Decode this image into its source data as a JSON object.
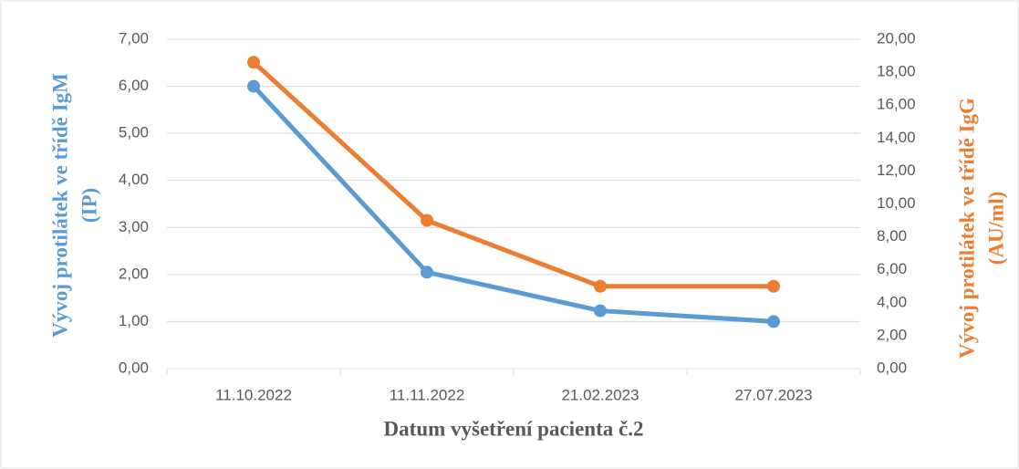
{
  "chart_data": {
    "type": "line",
    "xlabel": "Datum vyšetření pacienta č.2",
    "ylabel": [
      "Vývoj protilátek ve třídě IgM",
      "(IP)"
    ],
    "y2label": [
      "Vývoj protilátek ve třídě IgG",
      "(AU/ml)"
    ],
    "categories": [
      "11.10.2022",
      "11.11.2022",
      "21.02.2023",
      "27.07.2023"
    ],
    "series": [
      {
        "name": "IgM",
        "color": "#5b9bd5",
        "values": [
          6.0,
          2.05,
          1.23,
          1.0
        ]
      },
      {
        "name": "IgG",
        "color": "#ed7d31",
        "axis": "y2",
        "values": [
          18.6,
          9.0,
          5.0,
          5.0
        ]
      }
    ],
    "ylim": [
      0,
      7
    ],
    "yticks": [
      {
        "value": 0,
        "label": "0,00"
      },
      {
        "value": 1,
        "label": "1,00"
      },
      {
        "value": 2,
        "label": "2,00"
      },
      {
        "value": 3,
        "label": "3,00"
      },
      {
        "value": 4,
        "label": "4,00"
      },
      {
        "value": 5,
        "label": "5,00"
      },
      {
        "value": 6,
        "label": "6,00"
      },
      {
        "value": 7,
        "label": "7,00"
      }
    ],
    "y2lim": [
      0,
      20
    ],
    "y2ticks": [
      {
        "value": 0,
        "label": "0,00"
      },
      {
        "value": 2,
        "label": "2,00"
      },
      {
        "value": 4,
        "label": "4,00"
      },
      {
        "value": 6,
        "label": "6,00"
      },
      {
        "value": 8,
        "label": "8,00"
      },
      {
        "value": 10,
        "label": "10,00"
      },
      {
        "value": 12,
        "label": "12,00"
      },
      {
        "value": 14,
        "label": "14,00"
      },
      {
        "value": 16,
        "label": "16,00"
      },
      {
        "value": 18,
        "label": "18,00"
      },
      {
        "value": 20,
        "label": "20,00"
      }
    ],
    "grid": true
  }
}
